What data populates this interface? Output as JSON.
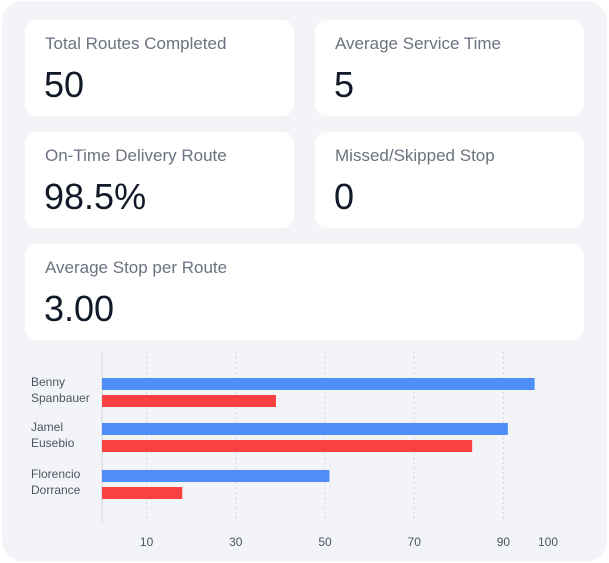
{
  "cards": {
    "total_routes": {
      "label": "Total Routes Completed",
      "value": "50"
    },
    "avg_service": {
      "label": "Average Service Time",
      "value": "5"
    },
    "on_time": {
      "label": "On-Time Delivery Route",
      "value": "98.5%"
    },
    "missed": {
      "label": "Missed/Skipped Stop",
      "value": "0"
    },
    "avg_stop": {
      "label": "Average Stop per Route",
      "value": "3.00"
    }
  },
  "chart_data": {
    "type": "bar",
    "orientation": "horizontal",
    "categories": [
      [
        "Benny",
        "Spanbauer"
      ],
      [
        "Jamel",
        "Eusebio"
      ],
      [
        "Florencio",
        "Dorrance"
      ]
    ],
    "series": [
      {
        "color": "#4f8ef7",
        "values": [
          97,
          91,
          51
        ]
      },
      {
        "color": "#fa4141",
        "values": [
          39,
          83,
          18
        ]
      }
    ],
    "xticks": [
      10,
      30,
      50,
      70,
      90,
      100
    ],
    "xlim": [
      0,
      100
    ],
    "grid": true
  }
}
